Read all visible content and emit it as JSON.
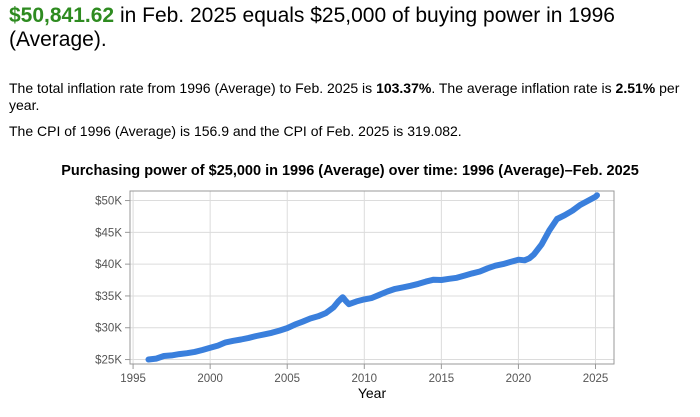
{
  "headline": {
    "amount": "$50,841.62",
    "text": " in Feb. 2025 equals $25,000 of buying power in 1996 (Average)."
  },
  "summary": {
    "p1_pre": "The total inflation rate from 1996 (Average) to Feb. 2025 is ",
    "p1_rate": "103.37%",
    "p1_mid": ". The average inflation rate is ",
    "p1_avg": "2.51%",
    "p1_post": " per year.",
    "p2": "The CPI of 1996 (Average) is 156.9 and the CPI of Feb. 2025 is 319.082."
  },
  "chart_data": {
    "type": "line",
    "title": "Purchasing power of $25,000 in 1996 (Average) over time: 1996 (Average)–Feb. 2025",
    "xlabel": "Year",
    "ylabel": "",
    "xlim": [
      1994.8,
      2026.2
    ],
    "ylim": [
      24300,
      51500
    ],
    "grid": true,
    "line_color": "#3a7fdc",
    "x_ticks": [
      1995,
      2000,
      2005,
      2010,
      2015,
      2020,
      2025
    ],
    "y_ticks": [
      {
        "value": 25000,
        "label": "$25K"
      },
      {
        "value": 30000,
        "label": "$30K"
      },
      {
        "value": 35000,
        "label": "$35K"
      },
      {
        "value": 40000,
        "label": "$40K"
      },
      {
        "value": 45000,
        "label": "$45K"
      },
      {
        "value": 50000,
        "label": "$50K"
      }
    ],
    "series": [
      {
        "name": "",
        "x": [
          1996.0,
          1996.5,
          1997.0,
          1997.5,
          1998.0,
          1998.5,
          1999.0,
          1999.5,
          2000.0,
          2000.5,
          2001.0,
          2001.5,
          2002.0,
          2002.5,
          2003.0,
          2003.5,
          2004.0,
          2004.5,
          2005.0,
          2005.5,
          2006.0,
          2006.5,
          2007.0,
          2007.5,
          2008.0,
          2008.3,
          2008.6,
          2008.8,
          2009.0,
          2009.5,
          2010.0,
          2010.5,
          2011.0,
          2011.5,
          2012.0,
          2012.5,
          2013.0,
          2013.5,
          2014.0,
          2014.5,
          2015.0,
          2015.5,
          2016.0,
          2016.5,
          2017.0,
          2017.5,
          2018.0,
          2018.5,
          2019.0,
          2019.5,
          2020.0,
          2020.4,
          2020.7,
          2021.0,
          2021.5,
          2022.0,
          2022.5,
          2023.0,
          2023.5,
          2024.0,
          2024.5,
          2025.0,
          2025.1
        ],
        "values": [
          25000,
          25150,
          25550,
          25650,
          25850,
          26000,
          26200,
          26500,
          26850,
          27200,
          27700,
          27950,
          28150,
          28400,
          28700,
          28950,
          29200,
          29550,
          29950,
          30500,
          30950,
          31450,
          31800,
          32300,
          33200,
          34100,
          34800,
          34200,
          33700,
          34150,
          34450,
          34700,
          35200,
          35700,
          36100,
          36350,
          36600,
          36900,
          37250,
          37550,
          37500,
          37700,
          37850,
          38200,
          38550,
          38850,
          39350,
          39750,
          40000,
          40350,
          40700,
          40600,
          40900,
          41500,
          43100,
          45300,
          47100,
          47700,
          48400,
          49300,
          49950,
          50600,
          50842
        ]
      }
    ]
  }
}
